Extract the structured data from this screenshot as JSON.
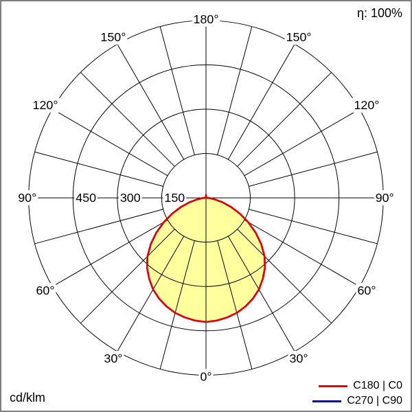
{
  "labels": {
    "efficiency": "η: 100%",
    "unit": "cd/klm"
  },
  "chart_data": {
    "type": "line",
    "coordinate_system": "polar",
    "title": "",
    "unit": "cd/klm",
    "orientation": "0° at bottom, 180° at top, 90° left and right",
    "efficiency": "100%",
    "r_max": 600,
    "rings": [
      150,
      300,
      450,
      600
    ],
    "labeled_rings": [
      450,
      300,
      150
    ],
    "angle_step_deg": 15,
    "angle_labels_deg": [
      0,
      30,
      60,
      90,
      120,
      150,
      180
    ],
    "grid": true,
    "legend_position": "bottom-right",
    "series": [
      {
        "name": "C180 | C0",
        "color": "#ee0000",
        "fill": "#ffff9e",
        "gamma_deg": [
          0,
          5,
          10,
          15,
          20,
          25,
          30,
          35,
          40,
          45,
          50,
          55,
          60,
          65,
          70,
          75,
          80,
          85,
          90,
          95,
          100,
          105,
          110,
          115,
          120,
          125,
          130,
          135,
          140,
          145,
          150,
          155,
          160,
          165,
          170,
          175,
          180
        ],
        "values_cd_per_klm": [
          420,
          417,
          411,
          403,
          391,
          376,
          358,
          335,
          310,
          280,
          244,
          205,
          165,
          126,
          90,
          57,
          30,
          13,
          5,
          2,
          1,
          0,
          0,
          0,
          0,
          0,
          0,
          0,
          0,
          0,
          0,
          0,
          0,
          0,
          3,
          6,
          10
        ]
      },
      {
        "name": "C270 | C90",
        "color": "#0000cc",
        "fill": null,
        "gamma_deg": [
          0,
          5,
          10,
          15,
          20,
          25,
          30,
          35,
          40,
          45,
          50,
          55,
          60,
          65,
          70,
          75,
          80,
          85,
          90,
          95,
          100,
          105,
          110,
          115,
          120,
          125,
          130,
          135,
          140,
          145,
          150,
          155,
          160,
          165,
          170,
          175,
          180
        ],
        "values_cd_per_klm": [
          420,
          417,
          411,
          403,
          391,
          376,
          358,
          335,
          310,
          280,
          244,
          205,
          165,
          126,
          90,
          57,
          30,
          13,
          5,
          2,
          1,
          0,
          0,
          0,
          0,
          0,
          0,
          0,
          0,
          0,
          0,
          0,
          0,
          0,
          3,
          6,
          10
        ]
      }
    ]
  }
}
